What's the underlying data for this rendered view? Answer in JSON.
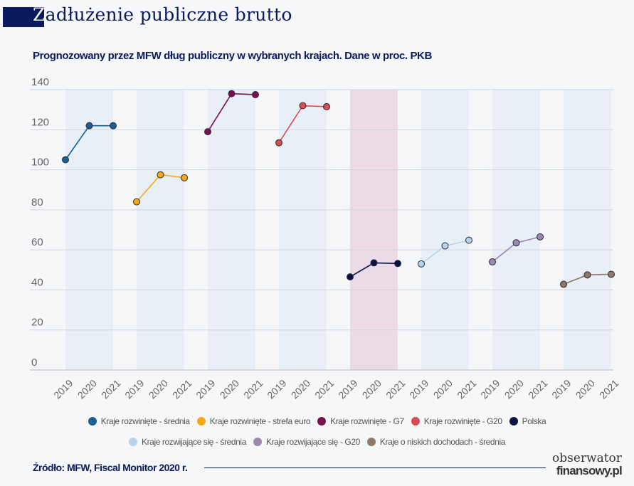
{
  "header": {
    "title_first_letter": "Z",
    "title_rest": "adłużenie publiczne brutto",
    "subtitle": "Prognozowany przez MFW dług publiczny w wybranych krajach. Dane w proc. PKB"
  },
  "chart_data": {
    "type": "line",
    "title": "Prognozowany przez MFW dług publiczny w wybranych krajach. Dane w proc. PKB",
    "ylim": [
      0,
      140
    ],
    "yticks": [
      0,
      20,
      40,
      60,
      80,
      100,
      120,
      140
    ],
    "grid": true,
    "legend_placement": "bottom",
    "x": [
      "2019",
      "2020",
      "2021"
    ],
    "series": [
      {
        "name": "Kraje rozwinięte - średnia",
        "color": "#1c5f94",
        "highlight_band": false,
        "values": [
          105,
          122,
          122
        ]
      },
      {
        "name": "Kraje rozwinięte - strefa euro",
        "color": "#f5a91a",
        "highlight_band": false,
        "values": [
          84,
          97.5,
          96
        ]
      },
      {
        "name": "Kraje rozwinięte - G7",
        "color": "#7a0f52",
        "highlight_band": false,
        "values": [
          119,
          138,
          137.5
        ]
      },
      {
        "name": "Kraje rozwinięte - G20",
        "color": "#d94c55",
        "highlight_band": false,
        "values": [
          113.5,
          132,
          131.5
        ]
      },
      {
        "name": "Polska",
        "color": "#0a1245",
        "highlight_band": true,
        "values": [
          46.5,
          53.5,
          53.2
        ]
      },
      {
        "name": "Kraje rozwijające się - średnia",
        "color": "#b8d4ec",
        "highlight_band": false,
        "values": [
          53,
          62,
          64.8
        ]
      },
      {
        "name": "Kraje rozwijające się - G20",
        "color": "#9a88b0",
        "highlight_band": false,
        "values": [
          54,
          63.5,
          66.5
        ]
      },
      {
        "name": "Kraje o niskich dochodach - średnia",
        "color": "#8c7a68",
        "highlight_band": false,
        "values": [
          42.8,
          47.5,
          47.8
        ]
      }
    ]
  },
  "footer": {
    "source": "Źródło: MFW, Fiscal Monitor 2020 r.",
    "logo_line1": "obserwator",
    "logo_line2": "finansowy.pl"
  }
}
